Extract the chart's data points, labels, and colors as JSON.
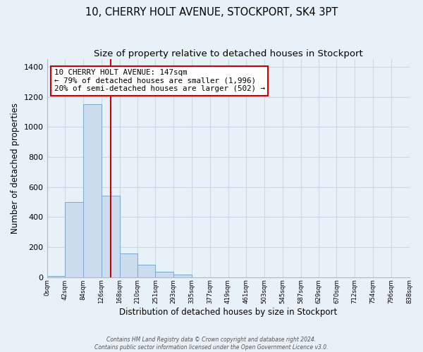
{
  "title": "10, CHERRY HOLT AVENUE, STOCKPORT, SK4 3PT",
  "subtitle": "Size of property relative to detached houses in Stockport",
  "xlabel": "Distribution of detached houses by size in Stockport",
  "ylabel": "Number of detached properties",
  "bin_edges": [
    0,
    42,
    84,
    126,
    168,
    210,
    251,
    293,
    335,
    377,
    419,
    461,
    503,
    545,
    587,
    629,
    670,
    712,
    754,
    796,
    838
  ],
  "bar_heights": [
    10,
    500,
    1150,
    540,
    160,
    85,
    35,
    20,
    0,
    0,
    0,
    0,
    0,
    0,
    0,
    0,
    0,
    0,
    0,
    0
  ],
  "bar_color": "#ccdcee",
  "bar_edge_color": "#7aaace",
  "bar_linewidth": 0.7,
  "property_value": 147,
  "red_line_color": "#cc0000",
  "annotation_text_line1": "10 CHERRY HOLT AVENUE: 147sqm",
  "annotation_text_line2": "← 79% of detached houses are smaller (1,996)",
  "annotation_text_line3": "20% of semi-detached houses are larger (502) →",
  "annotation_box_facecolor": "#ffffff",
  "annotation_box_edgecolor": "#cc0000",
  "ylim": [
    0,
    1450
  ],
  "xlim": [
    0,
    838
  ],
  "tick_labels": [
    "0sqm",
    "42sqm",
    "84sqm",
    "126sqm",
    "168sqm",
    "210sqm",
    "251sqm",
    "293sqm",
    "335sqm",
    "377sqm",
    "419sqm",
    "461sqm",
    "503sqm",
    "545sqm",
    "587sqm",
    "629sqm",
    "670sqm",
    "712sqm",
    "754sqm",
    "796sqm",
    "838sqm"
  ],
  "grid_color": "#ccd8e4",
  "background_color": "#e8f0f8",
  "plot_bg_color": "#e8f0f8",
  "title_fontsize": 10.5,
  "subtitle_fontsize": 9.5,
  "annotation_fontsize": 7.8,
  "footer_text": "Contains HM Land Registry data © Crown copyright and database right 2024.\nContains public sector information licensed under the Open Government Licence v3.0."
}
